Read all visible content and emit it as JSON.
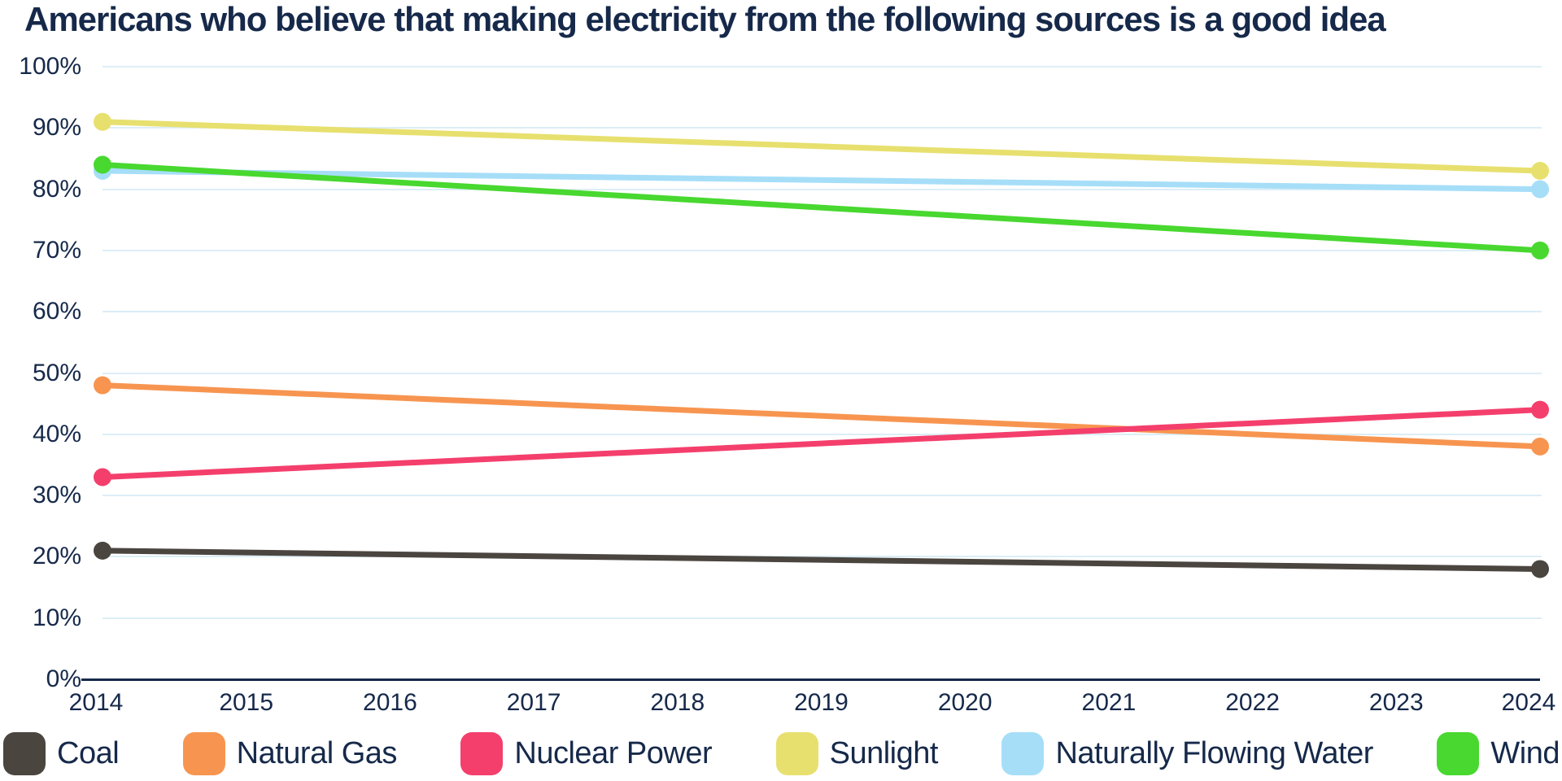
{
  "title": "Americans who believe that making electricity from the following sources is a good idea",
  "colors": {
    "text": "#16294a",
    "axis_line": "#16294a",
    "gridline": "#dceef6",
    "background": "#ffffff"
  },
  "chart_data": {
    "type": "line",
    "title": "Americans who believe that making electricity from the following sources is a good idea",
    "x": [
      2014,
      2024
    ],
    "x_ticks": [
      "2014",
      "2015",
      "2016",
      "2017",
      "2018",
      "2019",
      "2020",
      "2021",
      "2022",
      "2023",
      "2024"
    ],
    "y_ticks": [
      "0%",
      "10%",
      "20%",
      "30%",
      "40%",
      "50%",
      "60%",
      "70%",
      "80%",
      "90%",
      "100%"
    ],
    "ylim": [
      0,
      100
    ],
    "xlabel": "",
    "ylabel": "",
    "grid": true,
    "legend_position": "bottom",
    "marker": "circle-endpoints",
    "series": [
      {
        "name": "Coal",
        "color": "#4b4540",
        "values": [
          21,
          18
        ]
      },
      {
        "name": "Natural Gas",
        "color": "#f79550",
        "values": [
          48,
          38
        ]
      },
      {
        "name": "Nuclear Power",
        "color": "#f43f6c",
        "values": [
          33,
          44
        ]
      },
      {
        "name": "Sunlight",
        "color": "#e7e06e",
        "values": [
          91,
          83
        ]
      },
      {
        "name": "Naturally Flowing Water",
        "color": "#a6def8",
        "values": [
          83,
          80
        ]
      },
      {
        "name": "Wind",
        "color": "#48d82f",
        "values": [
          84,
          70
        ]
      }
    ]
  }
}
